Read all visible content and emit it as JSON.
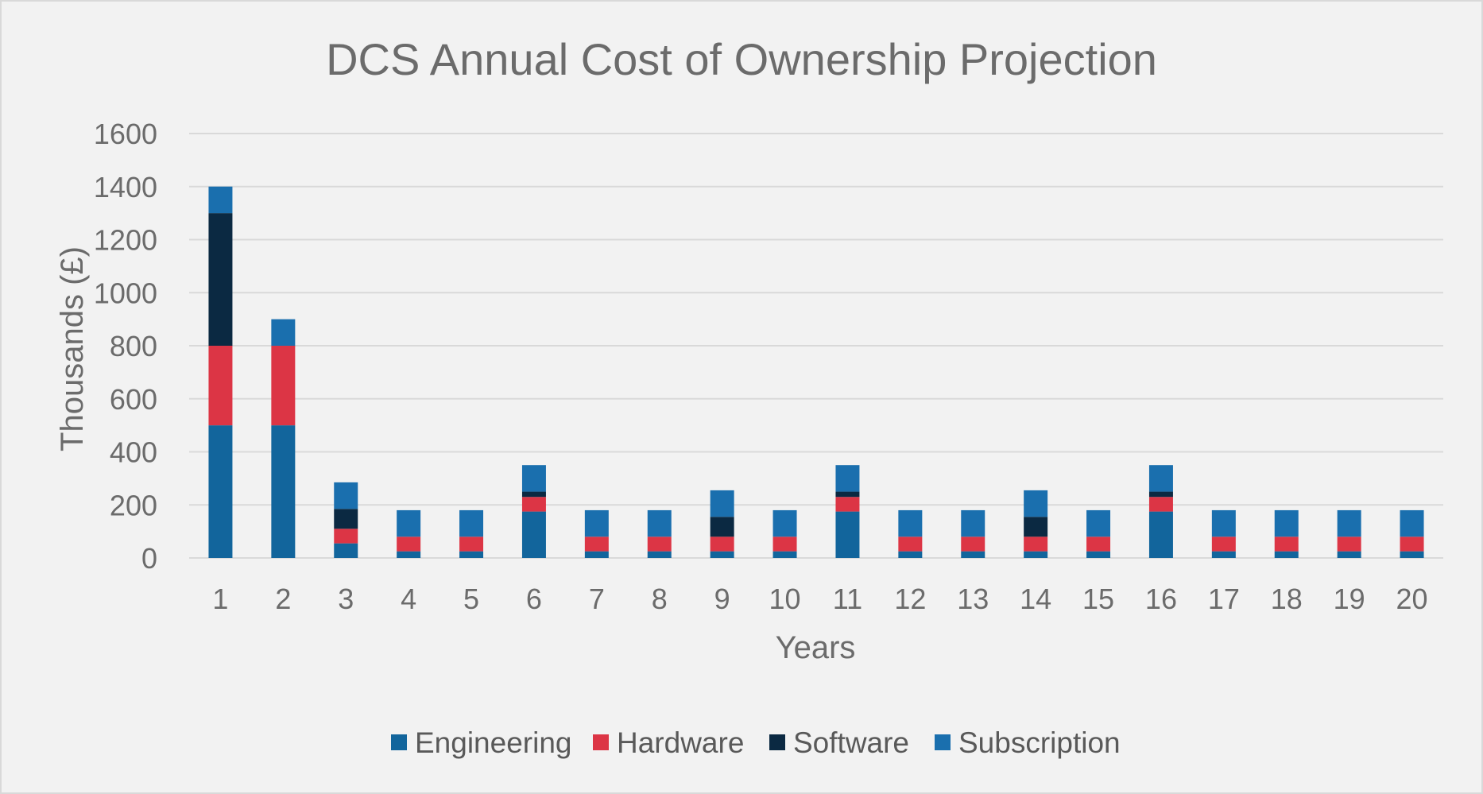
{
  "chart_data": {
    "type": "bar",
    "stacked": true,
    "title": "DCS Annual Cost of Ownership Projection",
    "xlabel": "Years",
    "ylabel": "Thousands (£)",
    "ylim": [
      0,
      1600
    ],
    "yticks": [
      0,
      200,
      400,
      600,
      800,
      1000,
      1200,
      1400,
      1600
    ],
    "grid": true,
    "legend_position": "bottom",
    "categories": [
      "1",
      "2",
      "3",
      "4",
      "5",
      "6",
      "7",
      "8",
      "9",
      "10",
      "11",
      "12",
      "13",
      "14",
      "15",
      "16",
      "17",
      "18",
      "19",
      "20"
    ],
    "series": [
      {
        "name": "Engineering",
        "color": "#12659c",
        "values": [
          500,
          500,
          55,
          25,
          25,
          175,
          25,
          25,
          25,
          25,
          175,
          25,
          25,
          25,
          25,
          175,
          25,
          25,
          25,
          25
        ]
      },
      {
        "name": "Hardware",
        "color": "#dc3545",
        "values": [
          300,
          300,
          55,
          55,
          55,
          55,
          55,
          55,
          55,
          55,
          55,
          55,
          55,
          55,
          55,
          55,
          55,
          55,
          55,
          55
        ]
      },
      {
        "name": "Software",
        "color": "#0b2942",
        "values": [
          500,
          0,
          75,
          0,
          0,
          20,
          0,
          0,
          75,
          0,
          20,
          0,
          0,
          75,
          0,
          20,
          0,
          0,
          0,
          0
        ]
      },
      {
        "name": "Subscription",
        "color": "#1a6fae",
        "values": [
          100,
          100,
          100,
          100,
          100,
          100,
          100,
          100,
          100,
          100,
          100,
          100,
          100,
          100,
          100,
          100,
          100,
          100,
          100,
          100
        ]
      }
    ]
  }
}
